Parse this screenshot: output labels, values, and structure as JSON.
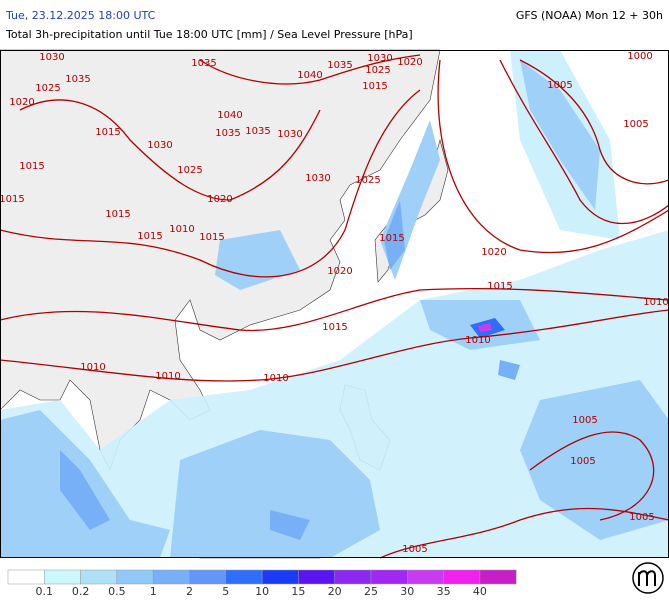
{
  "header": {
    "date": "Tue, 23.12.2025 18:00 UTC",
    "model": "GFS (NOAA) Mon 12 + 30h",
    "title": "Total 3h-precipitation until Tue 18:00 UTC [mm] / Sea Level Pressure [hPa]"
  },
  "isobar_labels": [
    "1030",
    "1035",
    "1025",
    "1020",
    "1015",
    "1015",
    "1015",
    "1030",
    "1025",
    "1035",
    "1040",
    "1035",
    "1035",
    "1030",
    "1040",
    "1035",
    "1030",
    "1025",
    "1020",
    "1015",
    "1030",
    "1025",
    "1020",
    "1015",
    "1010",
    "1015",
    "1015",
    "1015",
    "1020",
    "1020",
    "1015",
    "1010",
    "1010",
    "1015",
    "1010",
    "1010",
    "1010",
    "1005",
    "1000",
    "1005",
    "1005",
    "1005",
    "1005",
    "1005"
  ],
  "legend": {
    "labels": [
      "0.1",
      "0.2",
      "0.5",
      "1",
      "2",
      "5",
      "10",
      "15",
      "20",
      "25",
      "30",
      "35",
      "40"
    ],
    "colors": [
      "#ffffff",
      "#ccf8fc",
      "#aee0f8",
      "#90c8f8",
      "#78b0f8",
      "#6496f8",
      "#2e6ef8",
      "#1a3cf8",
      "#5a14f0",
      "#8c28f0",
      "#a028f0",
      "#c83cf0",
      "#f020f0",
      "#c81ec8"
    ]
  }
}
